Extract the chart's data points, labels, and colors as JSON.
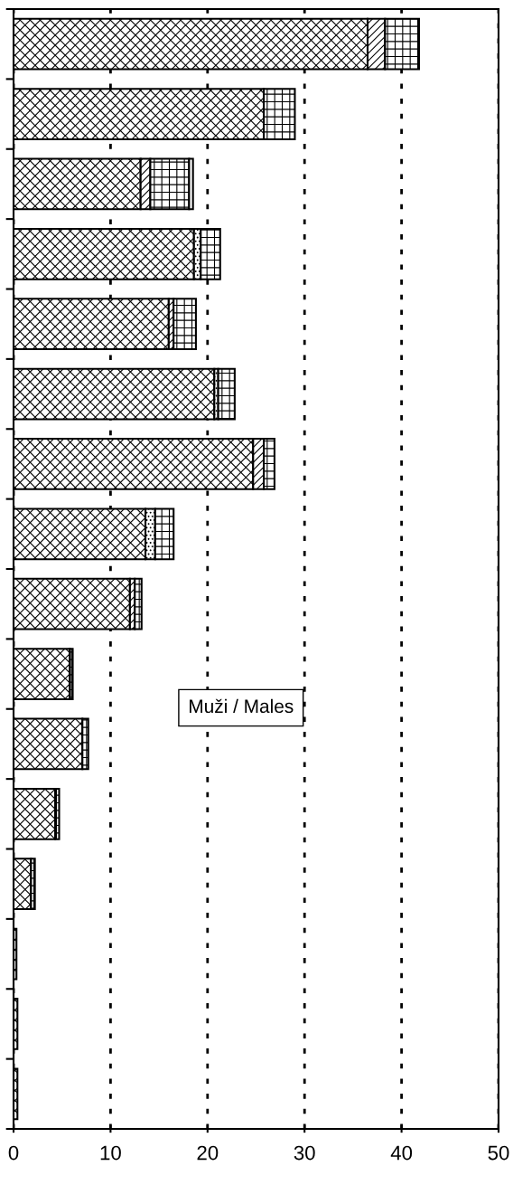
{
  "chart_data": {
    "type": "bar",
    "orientation": "horizontal",
    "stacked": true,
    "categories": [
      null,
      null,
      null,
      null,
      null,
      null,
      null,
      null,
      null,
      null,
      null,
      null,
      null,
      null,
      null,
      null
    ],
    "series": [
      {
        "color": "#000000",
        "values": [
          36.5,
          25.8,
          13.1,
          18.6,
          16.0,
          20.7,
          24.7,
          13.6,
          12.0,
          5.8,
          7.1,
          4.3,
          1.8,
          0.3,
          0.4,
          0.4
        ]
      },
      {
        "color": "#000000",
        "values": [
          1.8,
          null,
          1.0,
          null,
          0.5,
          null,
          1.1,
          null,
          0.5,
          null,
          null,
          null,
          null,
          null,
          null,
          null
        ]
      },
      {
        "color": "#000000",
        "values": [
          null,
          null,
          null,
          0.7,
          null,
          0.4,
          null,
          1.0,
          null,
          null,
          null,
          null,
          null,
          null,
          null,
          null
        ]
      },
      {
        "color": "#000000",
        "values": [
          3.5,
          3.2,
          4.0,
          2.0,
          2.3,
          1.7,
          1.1,
          1.9,
          0.7,
          0.3,
          0.6,
          0.4,
          0.4,
          null,
          null,
          null
        ]
      },
      {
        "color": "#000000",
        "values": [
          null,
          null,
          0.4,
          null,
          null,
          null,
          null,
          null,
          null,
          null,
          null,
          null,
          null,
          null,
          null,
          null
        ]
      }
    ],
    "xlim": [
      0,
      50
    ],
    "xticks": [
      0,
      10,
      20,
      30,
      40,
      50
    ],
    "grid": "x",
    "annotations": [
      "Muži / Males"
    ]
  }
}
